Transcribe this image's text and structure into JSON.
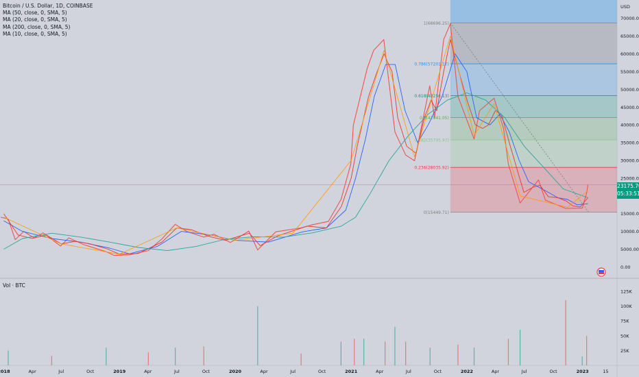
{
  "header": {
    "symbol_title": "Bitcoin / U.S. Dollar, 1D, COINBASE",
    "indicators": [
      "MA (50, close, 0, SMA, 5)",
      "MA (20, close, 0, SMA, 5)",
      "MA (200, close, 0, SMA, 5)",
      "MA (10, close, 0, SMA, 5)"
    ],
    "volume_label": "Vol · BTC"
  },
  "price_tag": {
    "price": "23175.70",
    "countdown": "05:33:51",
    "color": "#089981"
  },
  "colors": {
    "background": "#d1d4dc",
    "ma50": "#2962ff",
    "ma20": "#e53935",
    "ma200": "#26a69a",
    "ma10": "#ff9800",
    "up": "#26a69a",
    "down": "#ef5350"
  },
  "chart_data": {
    "type": "line",
    "title": "Bitcoin / U.S. Dollar, 1D, COINBASE",
    "price_axis": {
      "unit": "USD",
      "ticks": [
        "70000.00",
        "65000.00",
        "60000.00",
        "55000.00",
        "50000.00",
        "45000.00",
        "40000.00",
        "35000.00",
        "30000.00",
        "25000.00",
        "20000.00",
        "15000.00",
        "10000.00",
        "5000.00",
        "0.00"
      ],
      "tick_values": [
        70000,
        65000,
        60000,
        55000,
        50000,
        45000,
        40000,
        35000,
        30000,
        25000,
        20000,
        15000,
        10000,
        5000,
        0
      ],
      "ylim": [
        -3000,
        74000
      ]
    },
    "volume_axis": {
      "ticks": [
        "125K",
        "100K",
        "75K",
        "50K",
        "25K"
      ],
      "tick_values": [
        125000,
        100000,
        75000,
        50000,
        25000
      ]
    },
    "time_axis": {
      "labels": [
        "2018",
        "Apr",
        "Jul",
        "Oct",
        "2019",
        "Apr",
        "Jul",
        "Oct",
        "2020",
        "Apr",
        "Jul",
        "Oct",
        "2021",
        "Apr",
        "Jul",
        "Oct",
        "2022",
        "Apr",
        "Jul",
        "Oct",
        "2023",
        "15"
      ],
      "dates": [
        "2018-01-01",
        "2018-04-01",
        "2018-07-01",
        "2018-10-01",
        "2019-01-01",
        "2019-04-01",
        "2019-07-01",
        "2019-10-01",
        "2020-01-01",
        "2020-04-01",
        "2020-07-01",
        "2020-10-01",
        "2021-01-01",
        "2021-04-01",
        "2021-07-01",
        "2021-10-01",
        "2022-01-01",
        "2022-04-01",
        "2022-07-01",
        "2022-10-01",
        "2023-01-01",
        "2023-03-15"
      ],
      "xlim": [
        "2017-12-20",
        "2023-04-20"
      ]
    },
    "series": [
      {
        "name": "BTC",
        "x": [
          "2017-12-22",
          "2018-01-15",
          "2018-02-06",
          "2018-03-05",
          "2018-04-06",
          "2018-05-05",
          "2018-06-29",
          "2018-07-25",
          "2018-09-10",
          "2018-11-20",
          "2018-12-15",
          "2019-02-01",
          "2019-04-02",
          "2019-05-15",
          "2019-06-26",
          "2019-08-01",
          "2019-09-24",
          "2019-10-26",
          "2019-12-17",
          "2020-02-13",
          "2020-03-12",
          "2020-05-08",
          "2020-07-27",
          "2020-09-01",
          "2020-10-21",
          "2020-11-30",
          "2020-12-31",
          "2021-01-08",
          "2021-02-21",
          "2021-03-13",
          "2021-04-14",
          "2021-05-19",
          "2021-06-22",
          "2021-07-20",
          "2021-09-06",
          "2021-09-21",
          "2021-10-20",
          "2021-11-10",
          "2021-12-04",
          "2022-01-24",
          "2022-02-10",
          "2022-03-28",
          "2022-04-27",
          "2022-05-12",
          "2022-06-18",
          "2022-08-15",
          "2022-09-06",
          "2022-11-09",
          "2022-12-31",
          "2023-01-14",
          "2023-01-18"
        ],
        "y": [
          14000,
          13500,
          7700,
          10000,
          8200,
          9600,
          5900,
          8200,
          6300,
          4300,
          3250,
          3400,
          4600,
          7900,
          12000,
          10000,
          8400,
          9200,
          6900,
          10100,
          4800,
          9900,
          11000,
          11900,
          12800,
          19000,
          29000,
          40000,
          56000,
          61000,
          64000,
          38000,
          31500,
          29900,
          51000,
          42000,
          64000,
          68500,
          48000,
          36000,
          44000,
          47500,
          39000,
          29000,
          18000,
          24500,
          18800,
          16500,
          16550,
          20800,
          23175.7
        ]
      },
      {
        "name": "MA (50, close, 0, SMA, 5)",
        "x": [
          "2018-01-01",
          "2018-03-01",
          "2018-06-01",
          "2018-09-01",
          "2018-12-01",
          "2019-02-01",
          "2019-05-01",
          "2019-07-15",
          "2019-10-15",
          "2020-01-01",
          "2020-04-15",
          "2020-08-01",
          "2020-10-15",
          "2020-12-15",
          "2021-01-15",
          "2021-02-15",
          "2021-03-15",
          "2021-04-20",
          "2021-05-20",
          "2021-06-20",
          "2021-07-30",
          "2021-09-01",
          "2021-10-15",
          "2021-11-25",
          "2022-01-01",
          "2022-02-01",
          "2022-03-15",
          "2022-04-15",
          "2022-05-15",
          "2022-06-15",
          "2022-07-15",
          "2022-08-15",
          "2022-09-15",
          "2022-10-15",
          "2022-11-15",
          "2022-12-15",
          "2023-01-18"
        ],
        "y": [
          13000,
          10000,
          8000,
          7000,
          5300,
          3700,
          5800,
          10000,
          9000,
          7500,
          7000,
          9900,
          11000,
          16000,
          25000,
          36000,
          48000,
          57000,
          57000,
          44000,
          35000,
          40000,
          48000,
          60000,
          55000,
          42000,
          40000,
          43000,
          38000,
          30000,
          24000,
          22500,
          21000,
          19500,
          19000,
          17500,
          17800
        ]
      },
      {
        "name": "MA (20, close, 0, SMA, 5)",
        "x": [
          "2018-01-01",
          "2018-02-15",
          "2018-04-01",
          "2018-05-15",
          "2018-07-01",
          "2018-08-15",
          "2018-10-01",
          "2018-11-25",
          "2019-01-01",
          "2019-03-01",
          "2019-05-15",
          "2019-07-01",
          "2019-08-15",
          "2019-10-15",
          "2019-12-01",
          "2020-02-15",
          "2020-03-20",
          "2020-05-15",
          "2020-08-15",
          "2020-10-15",
          "2020-12-01",
          "2021-01-01",
          "2021-01-20",
          "2021-02-25",
          "2021-03-20",
          "2021-04-15",
          "2021-05-10",
          "2021-05-28",
          "2021-06-25",
          "2021-07-25",
          "2021-08-20",
          "2021-09-10",
          "2021-09-28",
          "2021-10-20",
          "2021-11-10",
          "2021-12-10",
          "2022-01-05",
          "2022-01-28",
          "2022-02-20",
          "2022-03-10",
          "2022-04-01",
          "2022-04-20",
          "2022-05-15",
          "2022-06-10",
          "2022-06-30",
          "2022-07-30",
          "2022-08-20",
          "2022-09-15",
          "2022-10-15",
          "2022-11-12",
          "2022-12-01",
          "2022-12-25",
          "2023-01-18"
        ],
        "y": [
          15000,
          9000,
          8000,
          9000,
          6500,
          7200,
          6500,
          5000,
          3600,
          3800,
          7000,
          11000,
          10500,
          8500,
          7500,
          9500,
          6000,
          8800,
          11500,
          11000,
          17000,
          25000,
          34000,
          48000,
          54000,
          60000,
          55000,
          42000,
          34000,
          32000,
          42000,
          47000,
          44000,
          55000,
          64000,
          54000,
          46000,
          40000,
          39000,
          40000,
          44000,
          43000,
          35000,
          27000,
          21000,
          22500,
          23000,
          19800,
          19500,
          18500,
          17200,
          16900,
          19500
        ]
      },
      {
        "name": "MA (200, close, 0, SMA, 5)",
        "x": [
          "2018-01-01",
          "2018-03-01",
          "2018-06-01",
          "2018-09-01",
          "2018-12-01",
          "2019-03-01",
          "2019-06-01",
          "2019-09-01",
          "2019-12-01",
          "2020-03-01",
          "2020-06-01",
          "2020-09-01",
          "2020-12-01",
          "2021-01-15",
          "2021-03-01",
          "2021-05-01",
          "2021-07-01",
          "2021-09-01",
          "2021-11-01",
          "2022-01-01",
          "2022-03-01",
          "2022-05-01",
          "2022-07-01",
          "2022-09-01",
          "2022-11-01",
          "2023-01-18"
        ],
        "y": [
          5000,
          8000,
          9500,
          8400,
          7000,
          5500,
          4600,
          5800,
          7800,
          8500,
          8400,
          9600,
          11500,
          14000,
          20500,
          30000,
          37000,
          43000,
          47000,
          49000,
          47000,
          42000,
          34000,
          28000,
          22000,
          19500
        ]
      },
      {
        "name": "MA (10, close, 0, SMA, 5)",
        "x": [
          "2018-01-01",
          "2018-07-01",
          "2019-01-01",
          "2019-07-01",
          "2020-01-01",
          "2020-07-01",
          "2021-01-01",
          "2021-04-15",
          "2021-07-20",
          "2021-11-10",
          "2022-01-24",
          "2022-03-28",
          "2022-06-18",
          "2022-11-15",
          "2023-01-18"
        ],
        "y": [
          14000,
          6500,
          3600,
          11000,
          7500,
          9500,
          30000,
          61000,
          31000,
          65000,
          37000,
          46000,
          20000,
          16800,
          21500
        ]
      }
    ],
    "volume_series": {
      "name": "Vol · BTC",
      "x": [
        "2018-01-15",
        "2018-06-01",
        "2018-11-20",
        "2019-04-02",
        "2019-06-26",
        "2019-09-24",
        "2020-03-12",
        "2020-07-27",
        "2020-11-30",
        "2021-01-11",
        "2021-02-10",
        "2021-04-18",
        "2021-05-19",
        "2021-06-22",
        "2021-09-07",
        "2021-12-04",
        "2022-01-24",
        "2022-05-12",
        "2022-06-18",
        "2022-11-09",
        "2022-12-31",
        "2023-01-14"
      ],
      "y": [
        25000,
        16000,
        30000,
        22000,
        30000,
        32000,
        100000,
        20000,
        40000,
        45000,
        45000,
        40000,
        65000,
        40000,
        30000,
        35000,
        30000,
        45000,
        60000,
        110000,
        15000,
        50000
      ]
    },
    "fibonacci": {
      "levels": [
        {
          "label": "1(68696.25)",
          "value": 68696.25,
          "color": "#808080"
        },
        {
          "label": "0.786(57201.17)",
          "value": 57201.17,
          "color": "#2196f3"
        },
        {
          "label": "0.618(48256.13)",
          "value": 48256.13,
          "color": "#089981"
        },
        {
          "label": "0.5(42041.05)",
          "value": 42041.05,
          "color": "#4caf50"
        },
        {
          "label": "0.382(35795.97)",
          "value": 35795.97,
          "color": "#81c784"
        },
        {
          "label": "0.236(28035.92)",
          "value": 28035.92,
          "color": "#f23645"
        },
        {
          "label": "0(15449.71)",
          "value": 15449.71,
          "color": "#808080"
        }
      ],
      "start": "2021-11-10",
      "end": "2023-01-20"
    },
    "current_price_line": 23175.7,
    "grid": false,
    "legend": "top-left"
  }
}
